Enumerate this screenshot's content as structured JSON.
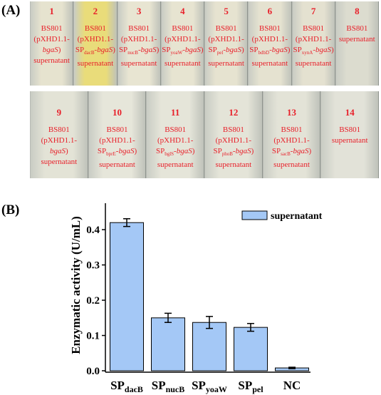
{
  "panel_a": {
    "label": "(A)",
    "rows": [
      [
        {
          "number": "1",
          "color": "#e6e3cf",
          "lines": [
            [
              {
                "text": "BS801"
              }
            ],
            [
              {
                "text": "(pXHD1.1-"
              }
            ],
            [
              {
                "text": "bgaS",
                "italic": true
              },
              {
                "text": ")"
              }
            ],
            [
              {
                "text": "supernatant"
              }
            ]
          ]
        },
        {
          "number": "2",
          "color": "#e9dc7a",
          "lines": [
            [
              {
                "text": "BS801"
              }
            ],
            [
              {
                "text": "(pXHD1.1-"
              }
            ],
            [
              {
                "text": "SP"
              },
              {
                "text": "dacB",
                "sub": true
              },
              {
                "text": "-"
              },
              {
                "text": "bgaS",
                "italic": true
              },
              {
                "text": ")"
              }
            ],
            [
              {
                "text": "supernatant"
              }
            ]
          ]
        },
        {
          "number": "3",
          "color": "#e8e5d2",
          "lines": [
            [
              {
                "text": "BS801"
              }
            ],
            [
              {
                "text": "(pXHD1.1-"
              }
            ],
            [
              {
                "text": "SP"
              },
              {
                "text": "nucB",
                "sub": true
              },
              {
                "text": "-"
              },
              {
                "text": "bgaS",
                "italic": true
              },
              {
                "text": ")"
              }
            ],
            [
              {
                "text": "supernatant"
              }
            ]
          ]
        },
        {
          "number": "4",
          "color": "#e7e4d1",
          "lines": [
            [
              {
                "text": "BS801"
              }
            ],
            [
              {
                "text": "(pXHD1.1-"
              }
            ],
            [
              {
                "text": "SP"
              },
              {
                "text": "yoaW",
                "sub": true
              },
              {
                "text": "-"
              },
              {
                "text": "bgaS",
                "italic": true
              },
              {
                "text": ")"
              }
            ],
            [
              {
                "text": "supernatant"
              }
            ]
          ]
        },
        {
          "number": "5",
          "color": "#e6e3d0",
          "lines": [
            [
              {
                "text": "BS801"
              }
            ],
            [
              {
                "text": "(pXHD1.1-"
              }
            ],
            [
              {
                "text": "SP"
              },
              {
                "text": "pel",
                "sub": true
              },
              {
                "text": "-"
              },
              {
                "text": "bgaS",
                "italic": true
              },
              {
                "text": ")"
              }
            ],
            [
              {
                "text": "supernatant"
              }
            ]
          ]
        },
        {
          "number": "6",
          "color": "#e5e2d0",
          "lines": [
            [
              {
                "text": "BS801"
              }
            ],
            [
              {
                "text": "(pXHD1.1-"
              }
            ],
            [
              {
                "text": "SP"
              },
              {
                "text": "bdbD",
                "sub": true
              },
              {
                "text": "-"
              },
              {
                "text": "bgaS",
                "italic": true
              },
              {
                "text": ")"
              }
            ],
            [
              {
                "text": "supernatant"
              }
            ]
          ]
        },
        {
          "number": "7",
          "color": "#e4e1d0",
          "lines": [
            [
              {
                "text": "BS801"
              }
            ],
            [
              {
                "text": "(pXHD1.1-"
              }
            ],
            [
              {
                "text": "SP"
              },
              {
                "text": "xynA",
                "sub": true
              },
              {
                "text": "-"
              },
              {
                "text": "bgaS",
                "italic": true
              },
              {
                "text": ")"
              }
            ],
            [
              {
                "text": "supernatant"
              }
            ]
          ]
        },
        {
          "number": "8",
          "color": "#dcdccf",
          "lines": [
            [
              {
                "text": "BS801"
              }
            ],
            [
              {
                "text": "supernatant"
              }
            ]
          ]
        }
      ],
      [
        {
          "number": "9",
          "color": "#e3e3d6",
          "lines": [
            [
              {
                "text": "BS801"
              }
            ],
            [
              {
                "text": "(pXHD1.1-"
              }
            ],
            [
              {
                "text": "bgaS",
                "italic": true
              },
              {
                "text": ")"
              }
            ],
            [
              {
                "text": "supernatant"
              }
            ]
          ]
        },
        {
          "number": "10",
          "color": "#e6e6da",
          "lines": [
            [
              {
                "text": "BS801"
              }
            ],
            [
              {
                "text": "(pXHD1.1-"
              }
            ],
            [
              {
                "text": "SP"
              },
              {
                "text": "bprE",
                "sub": true
              },
              {
                "text": "-"
              },
              {
                "text": "bgaS",
                "italic": true
              },
              {
                "text": ")"
              }
            ],
            [
              {
                "text": "supernatant"
              }
            ]
          ]
        },
        {
          "number": "11",
          "color": "#e5e5d9",
          "lines": [
            [
              {
                "text": "BS801"
              }
            ],
            [
              {
                "text": "(pXHD1.1-"
              }
            ],
            [
              {
                "text": "SP"
              },
              {
                "text": "bglS",
                "sub": true
              },
              {
                "text": "-"
              },
              {
                "text": "bgaS",
                "italic": true
              },
              {
                "text": ")"
              }
            ],
            [
              {
                "text": "supernatant"
              }
            ]
          ]
        },
        {
          "number": "12",
          "color": "#e4e4d8",
          "lines": [
            [
              {
                "text": "BS801"
              }
            ],
            [
              {
                "text": "(pXHD1.1-"
              }
            ],
            [
              {
                "text": "SP"
              },
              {
                "text": "phoB",
                "sub": true
              },
              {
                "text": "-"
              },
              {
                "text": "bgaS",
                "italic": true
              },
              {
                "text": ")"
              }
            ],
            [
              {
                "text": "supernatant"
              }
            ]
          ]
        },
        {
          "number": "13",
          "color": "#e3e3d7",
          "lines": [
            [
              {
                "text": "BS801"
              }
            ],
            [
              {
                "text": "(pXHD1.1-"
              }
            ],
            [
              {
                "text": "SP"
              },
              {
                "text": "sacB",
                "sub": true
              },
              {
                "text": "-"
              },
              {
                "text": "bgaS",
                "italic": true
              },
              {
                "text": ")"
              }
            ],
            [
              {
                "text": "supernatant"
              }
            ]
          ]
        },
        {
          "number": "14",
          "color": "#e2e2d8",
          "lines": [
            [
              {
                "text": "BS801"
              }
            ],
            [
              {
                "text": "supernatant"
              }
            ]
          ]
        }
      ]
    ]
  },
  "chart_data": {
    "type": "bar",
    "panel_label": "(B)",
    "y_label": "Enzymatic activity (U/mL)",
    "categories": [
      [
        "SP",
        "dacB"
      ],
      [
        "SP",
        "nucB"
      ],
      [
        "SP",
        "yoaW"
      ],
      [
        "SP",
        "pel"
      ],
      [
        "NC"
      ]
    ],
    "series": [
      {
        "name": "supernatant",
        "color": "#a4c8f6",
        "values": [
          0.42,
          0.15,
          0.137,
          0.123,
          0.008
        ],
        "errors": [
          0.011,
          0.013,
          0.017,
          0.011,
          0.002
        ]
      }
    ],
    "ylim": [
      0,
      0.475
    ],
    "yticks": [
      {
        "value": 0,
        "label": "0.0"
      },
      0.1,
      0.2,
      0.3,
      0.4
    ],
    "legend": "top-right"
  }
}
